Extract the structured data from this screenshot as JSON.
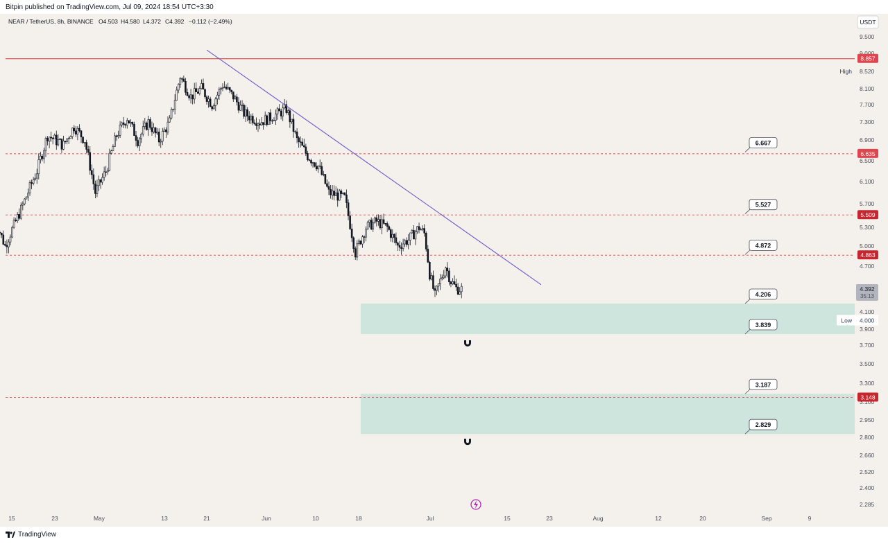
{
  "publisher": {
    "text": "Bitpin published on TradingView.com, Jul 09, 2024 18:54 UTC+3:30"
  },
  "legend": {
    "symbol": "NEAR / TetherUS, 8h, BINANCE",
    "open": "O4.503",
    "high": "H4.580",
    "low": "L4.372",
    "close": "C4.392",
    "change": "−0.112 (−2.49%)"
  },
  "currency_button": "USDT",
  "footer": {
    "brand": "TradingView"
  },
  "colors": {
    "background": "#f4f0eb",
    "candle": "#131722",
    "trendline": "#6a5acd",
    "support_line": "#e0525b",
    "resistance_line": "#d32f2f",
    "zone_fill": "#cde5dc",
    "badge_red": "#e0454d",
    "badge_darkred": "#c7262f",
    "badge_grey": "#b2b5be"
  },
  "chart_data": {
    "type": "candlestick",
    "symbol": "NEAR / TetherUS",
    "interval": "8h",
    "exchange": "BINANCE",
    "x_ticks": [
      "15",
      "23",
      "May",
      "13",
      "21",
      "Jun",
      "10",
      "18",
      "Jul",
      "15",
      "23",
      "Aug",
      "12",
      "20",
      "Sep",
      "9"
    ],
    "y_ticks": [
      "9.500",
      "9.000",
      "8.520",
      "8.100",
      "7.700",
      "7.300",
      "6.900",
      "6.500",
      "6.100",
      "5.700",
      "5.300",
      "5.000",
      "4.700",
      "4.100",
      "3.900",
      "3.700",
      "3.500",
      "3.300",
      "3.100",
      "2.950",
      "2.800",
      "2.660",
      "2.520",
      "2.400",
      "2.285"
    ],
    "price_path": [
      [
        "2024-04-12",
        5.45
      ],
      [
        "2024-04-14",
        5.0
      ],
      [
        "2024-04-17",
        5.6
      ],
      [
        "2024-04-20",
        6.3
      ],
      [
        "2024-04-22",
        7.0
      ],
      [
        "2024-04-25",
        6.8
      ],
      [
        "2024-04-27",
        7.2
      ],
      [
        "2024-04-29",
        6.9
      ],
      [
        "2024-05-01",
        5.9
      ],
      [
        "2024-05-03",
        6.3
      ],
      [
        "2024-05-05",
        7.0
      ],
      [
        "2024-05-07",
        7.4
      ],
      [
        "2024-05-09",
        6.9
      ],
      [
        "2024-05-11",
        7.3
      ],
      [
        "2024-05-13",
        6.9
      ],
      [
        "2024-05-15",
        7.3
      ],
      [
        "2024-05-17",
        8.4
      ],
      [
        "2024-05-19",
        7.9
      ],
      [
        "2024-05-21",
        8.1
      ],
      [
        "2024-05-23",
        7.7
      ],
      [
        "2024-05-25",
        8.2
      ],
      [
        "2024-05-27",
        7.9
      ],
      [
        "2024-05-29",
        7.5
      ],
      [
        "2024-06-01",
        7.3
      ],
      [
        "2024-06-03",
        7.4
      ],
      [
        "2024-06-06",
        7.6
      ],
      [
        "2024-06-08",
        6.9
      ],
      [
        "2024-06-10",
        6.6
      ],
      [
        "2024-06-12",
        6.4
      ],
      [
        "2024-06-14",
        5.9
      ],
      [
        "2024-06-17",
        5.8
      ],
      [
        "2024-06-19",
        4.9
      ],
      [
        "2024-06-21",
        5.3
      ],
      [
        "2024-06-23",
        5.4
      ],
      [
        "2024-06-25",
        5.3
      ],
      [
        "2024-06-27",
        5.0
      ],
      [
        "2024-06-29",
        5.1
      ],
      [
        "2024-07-01",
        5.3
      ],
      [
        "2024-07-02",
        5.2
      ],
      [
        "2024-07-03",
        4.6
      ],
      [
        "2024-07-04",
        4.3
      ],
      [
        "2024-07-05",
        4.5
      ],
      [
        "2024-07-06",
        4.7
      ],
      [
        "2024-07-07",
        4.5
      ],
      [
        "2024-07-08",
        4.4
      ],
      [
        "2024-07-09",
        4.392
      ]
    ],
    "trendline": {
      "start": [
        "2024-05-22",
        9.1
      ],
      "end": [
        "2024-07-24",
        4.45
      ]
    },
    "horizontal_lines": [
      {
        "price": 8.857,
        "style": "solid"
      },
      {
        "price": 6.635,
        "style": "dashed"
      },
      {
        "price": 5.509,
        "style": "dashed"
      },
      {
        "price": 4.863,
        "style": "dashed"
      },
      {
        "price": 3.148,
        "style": "dashed"
      }
    ],
    "zones": [
      {
        "from": "2024-06-20",
        "top": 4.206,
        "bottom": 3.839
      },
      {
        "from": "2024-06-20",
        "top": 3.187,
        "bottom": 2.829
      }
    ],
    "callouts": [
      "6.667",
      "5.527",
      "4.872",
      "4.206",
      "3.839",
      "3.187",
      "2.829"
    ],
    "price_badges": [
      {
        "text": "8.857",
        "color": "red"
      },
      {
        "text": "6.635",
        "color": "red"
      },
      {
        "text": "5.509",
        "color": "darkred"
      },
      {
        "text": "4.863",
        "color": "darkred"
      },
      {
        "text": "3.148",
        "color": "darkred"
      }
    ],
    "last_price": {
      "price": "4.392",
      "countdown": "35:13"
    },
    "high_label": {
      "label": "High",
      "value": "8.520"
    },
    "low_label": {
      "label": "Low",
      "value": "4.000"
    }
  }
}
